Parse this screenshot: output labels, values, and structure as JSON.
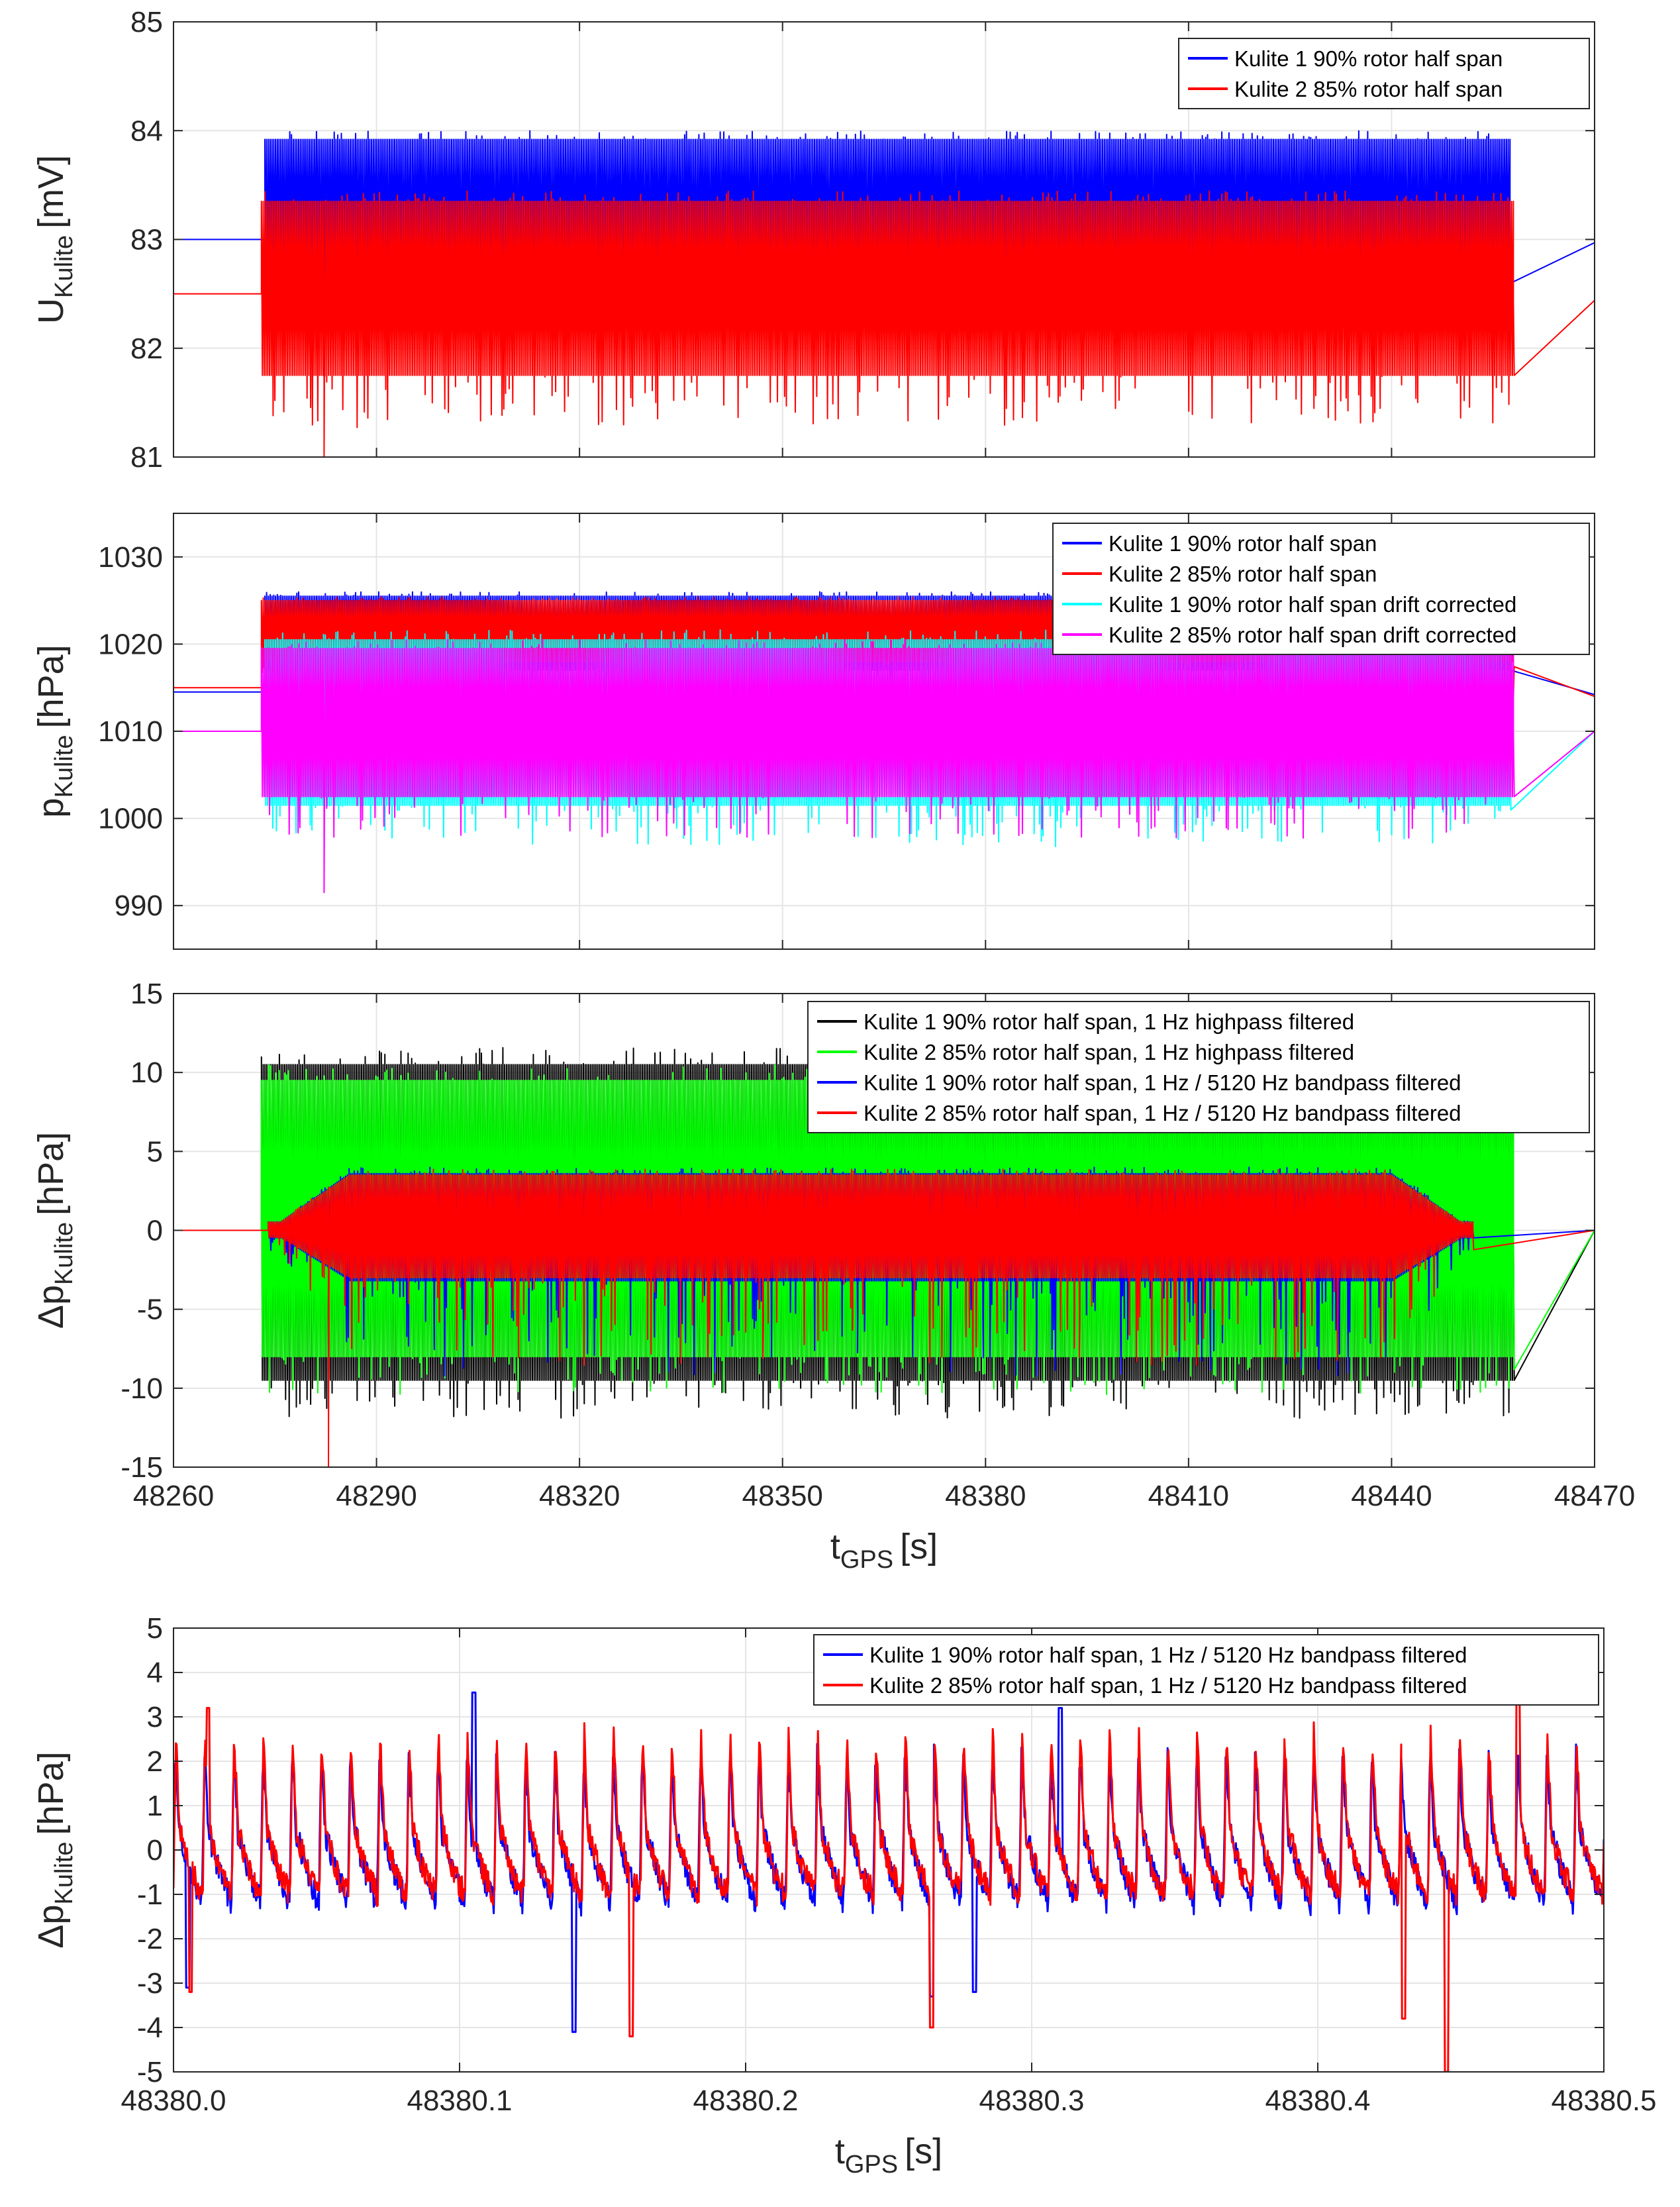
{
  "chart_data": [
    {
      "id": "voltage",
      "type": "line",
      "ylabel_main": "U",
      "ylabel_sub": "Kulite",
      "ylabel_unit": "[mV]",
      "xlabel_main": "",
      "xlabel_sub": "",
      "xlabel_unit": "",
      "xlim": [
        48260,
        48470
      ],
      "ylim": [
        81,
        85
      ],
      "xticks": [
        48260,
        48290,
        48320,
        48350,
        48380,
        48410,
        48440,
        48470
      ],
      "yticks": [
        81,
        82,
        83,
        84,
        85
      ],
      "show_xtick_labels": false,
      "grid": true,
      "legend_position": "top-right",
      "series": [
        {
          "name": "Kulite 1 90% rotor half span",
          "color": "#0000ff",
          "type": "envelope",
          "start": 48273.5,
          "end": 48457.5,
          "baseline_before": 83.0,
          "baseline_after": 82.97,
          "upper": 83.92,
          "lower": 82.6,
          "lower_ext": 82.3,
          "ramp_start_end": 48274.5,
          "ramp_end_start": 48456.5
        },
        {
          "name": "Kulite 2 85% rotor half span",
          "color": "#ff0000",
          "type": "envelope",
          "start": 48273.0,
          "end": 48458.0,
          "baseline_before": 82.5,
          "baseline_after": 82.44,
          "upper": 83.35,
          "lower": 81.75,
          "lower_ext": 81.45,
          "lower_min": 81.0
        }
      ]
    },
    {
      "id": "pressure",
      "type": "line",
      "ylabel_main": "p",
      "ylabel_sub": "Kulite",
      "ylabel_unit": "[hPa]",
      "xlabel_main": "",
      "xlabel_sub": "",
      "xlabel_unit": "",
      "xlim": [
        48260,
        48470
      ],
      "ylim": [
        985,
        1035
      ],
      "xticks": [
        48260,
        48290,
        48320,
        48350,
        48380,
        48410,
        48440,
        48470
      ],
      "yticks": [
        990,
        1000,
        1010,
        1020,
        1030
      ],
      "show_xtick_labels": false,
      "grid": true,
      "legend_position": "top-right",
      "series": [
        {
          "name": "Kulite 1 90% rotor half span",
          "color": "#0000ff",
          "type": "envelope",
          "start": 48273.5,
          "end": 48457.5,
          "baseline_before": 1014.5,
          "baseline_after": 1014.2,
          "upper": 1025.5,
          "lower": 1017.0,
          "lower_ext": 1016.0
        },
        {
          "name": "Kulite 2 85% rotor half span",
          "color": "#ff0000",
          "type": "envelope",
          "start": 48273.0,
          "end": 48458.0,
          "baseline_before": 1015.0,
          "baseline_after": 1014.0,
          "upper": 1025.0,
          "lower": 1018.0,
          "lower_ext": 1017.0
        },
        {
          "name": "Kulite 1 90% rotor half span drift corrected",
          "color": "#00ffff",
          "type": "envelope",
          "start": 48273.5,
          "end": 48457.5,
          "baseline_before": 1010.0,
          "baseline_after": 1010.0,
          "upper": 1020.5,
          "lower": 1001.5,
          "lower_ext": 998.5
        },
        {
          "name": "Kulite 2 85% rotor half span drift corrected",
          "color": "#ff00ff",
          "type": "envelope",
          "start": 48273.0,
          "end": 48458.0,
          "baseline_before": 1010.0,
          "baseline_after": 1010.0,
          "upper": 1019.5,
          "lower": 1002.5,
          "lower_ext": 999.5,
          "lower_min": 991.5
        }
      ]
    },
    {
      "id": "filtered",
      "type": "line",
      "ylabel_main": "Δp",
      "ylabel_sub": "Kulite",
      "ylabel_unit": "[hPa]",
      "xlabel_main": "t",
      "xlabel_sub": "GPS",
      "xlabel_unit": "[s]",
      "xlim": [
        48260,
        48470
      ],
      "ylim": [
        -15,
        15
      ],
      "xticks": [
        48260,
        48290,
        48320,
        48350,
        48380,
        48410,
        48440,
        48470
      ],
      "yticks": [
        -15,
        -10,
        -5,
        0,
        5,
        10,
        15
      ],
      "show_xtick_labels": true,
      "grid": true,
      "legend_position": "top-right",
      "series": [
        {
          "name": "Kulite 1 90% rotor half span, 1 Hz highpass filtered",
          "color": "#000000",
          "type": "envelope",
          "start": 48273.0,
          "end": 48458.0,
          "baseline_before": 0,
          "baseline_after": 0,
          "upper": 10.5,
          "lower": -9.5,
          "lower_ext": -11.0
        },
        {
          "name": "Kulite 2 85% rotor half span, 1 Hz highpass filtered",
          "color": "#00ff00",
          "type": "envelope",
          "start": 48273.0,
          "end": 48458.0,
          "baseline_before": 0,
          "baseline_after": 0,
          "upper": 9.5,
          "lower": -8.0,
          "lower_ext": -9.5
        },
        {
          "name": "Kulite 1 90% rotor half span, 1 Hz / 5120 Hz bandpass filtered",
          "color": "#0000ff",
          "type": "envelope",
          "start": 48274.0,
          "end": 48452.0,
          "baseline_before": 0,
          "baseline_after": 0,
          "upper": 3.6,
          "lower": -3.2,
          "lower_ext": -7.0,
          "taper": true
        },
        {
          "name": "Kulite 2 85% rotor half span, 1 Hz / 5120 Hz bandpass filtered",
          "color": "#ff0000",
          "type": "envelope",
          "start": 48274.0,
          "end": 48452.0,
          "baseline_before": 0,
          "baseline_after": 0,
          "upper": 3.5,
          "lower": -3.0,
          "lower_ext": -6.5,
          "lower_min": -15.0,
          "taper": true
        }
      ]
    },
    {
      "id": "zoom",
      "type": "line",
      "ylabel_main": "Δp",
      "ylabel_sub": "Kulite",
      "ylabel_unit": "[hPa]",
      "xlabel_main": "t",
      "xlabel_sub": "GPS",
      "xlabel_unit": "[s]",
      "xlim": [
        48380,
        48380.5
      ],
      "ylim": [
        -5,
        5
      ],
      "xticks": [
        48380,
        48380.1,
        48380.2,
        48380.3,
        48380.4,
        48380.5
      ],
      "yticks": [
        -5,
        -4,
        -3,
        -2,
        -1,
        0,
        1,
        2,
        3,
        4,
        5
      ],
      "show_xtick_labels": true,
      "grid": true,
      "legend_position": "top-right",
      "period": 0.0102,
      "series": [
        {
          "name": "Kulite 1 90% rotor half span, 1 Hz / 5120 Hz bandpass filtered",
          "color": "#0000ff",
          "type": "periodic",
          "peak": 2.2,
          "trough": -1.2,
          "phase": 0.0002,
          "spikes": [
            [
              48380.005,
              -3.1
            ],
            [
              48380.14,
              -4.1
            ],
            [
              48380.265,
              -3.3
            ],
            [
              48380.28,
              -3.2
            ],
            [
              48380.105,
              3.55
            ],
            [
              48380.31,
              3.2
            ]
          ]
        },
        {
          "name": "Kulite 2 85% rotor half span, 1 Hz / 5120 Hz bandpass filtered",
          "color": "#ff0000",
          "type": "periodic",
          "peak": 2.6,
          "trough": -1.0,
          "phase": 0.0,
          "spikes": [
            [
              48380.006,
              -3.2
            ],
            [
              48380.16,
              -4.2
            ],
            [
              48380.265,
              -4.0
            ],
            [
              48380.43,
              -3.8
            ],
            [
              48380.445,
              -5.0
            ],
            [
              48380.47,
              3.4
            ],
            [
              48380.012,
              3.2
            ]
          ]
        }
      ]
    }
  ],
  "colors": {
    "axis": "#262626",
    "grid": "#e5e5e5",
    "background": "#ffffff"
  }
}
